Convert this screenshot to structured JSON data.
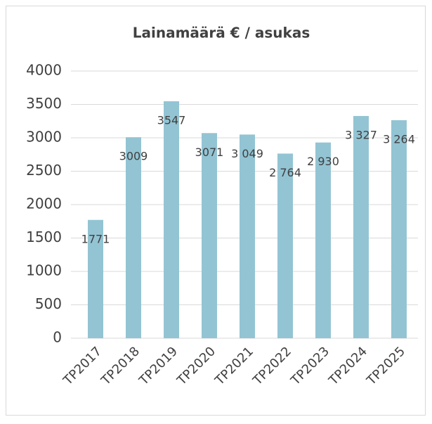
{
  "chart_data": {
    "type": "bar",
    "title": "Lainamäärä € / asukas",
    "categories": [
      "TP2017",
      "TP2018",
      "TP2019",
      "TP2020",
      "TP2021",
      "TP2022",
      "TP2023",
      "TP2024",
      "TP2025"
    ],
    "values": [
      1771,
      3009,
      3547,
      3071,
      3049,
      2764,
      2930,
      3327,
      3264
    ],
    "value_labels": [
      "1771",
      "3009",
      "3547",
      "3071",
      "3 049",
      "2 764",
      "2 930",
      "3 327",
      "3 264"
    ],
    "color": "#93c4d3",
    "ylim": [
      0,
      4000
    ],
    "yticks": [
      0,
      500,
      1000,
      1500,
      2000,
      2500,
      3000,
      3500,
      4000
    ],
    "grid": true
  }
}
